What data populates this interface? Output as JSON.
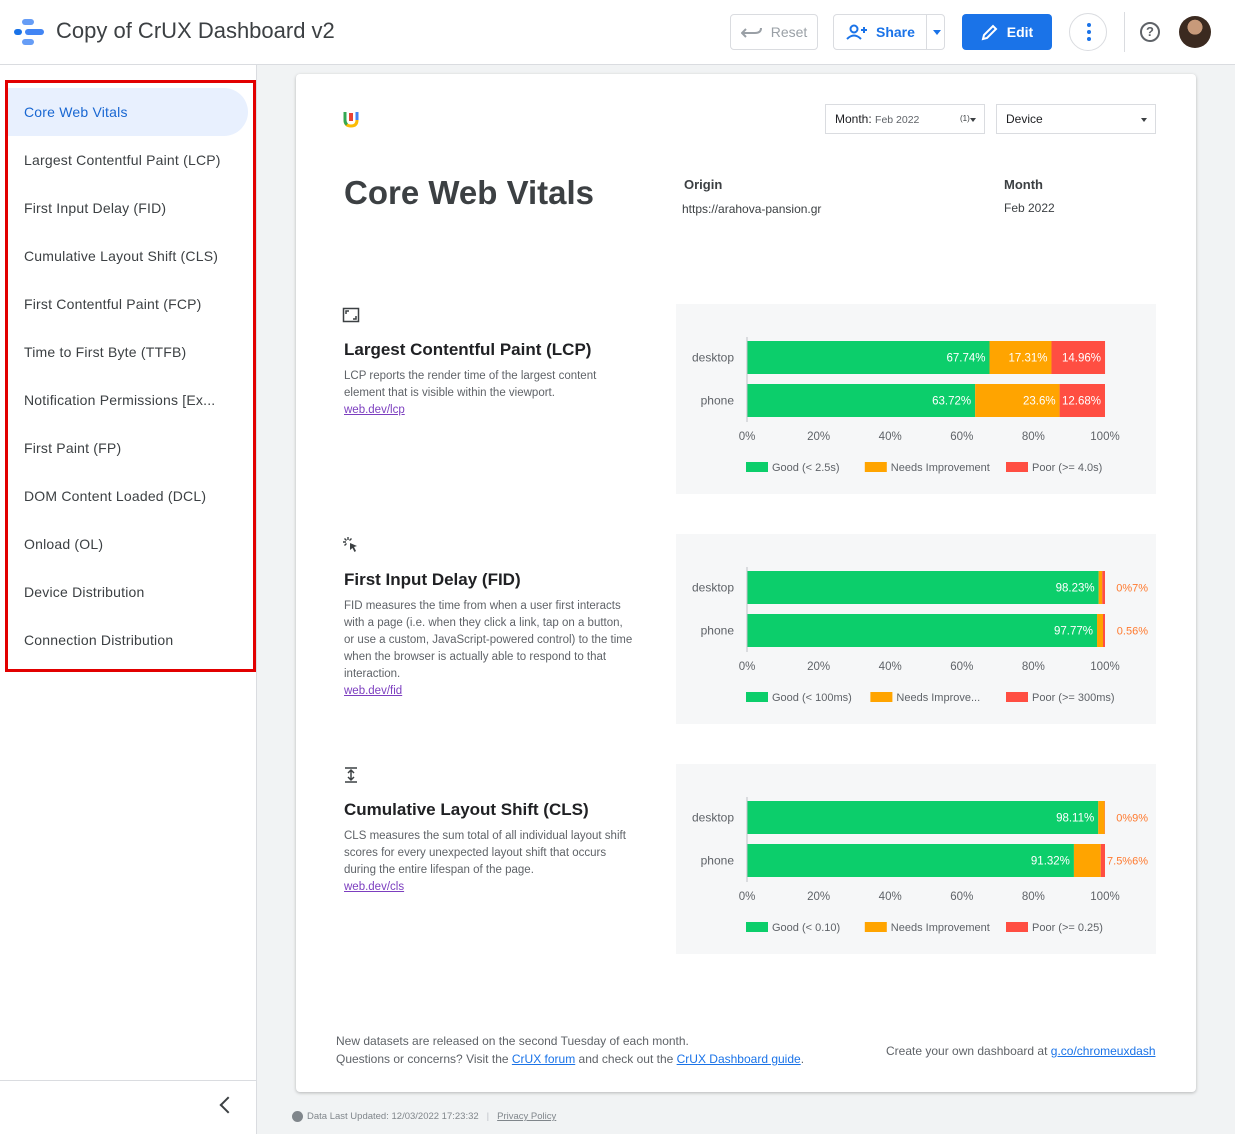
{
  "header": {
    "title": "Copy of CrUX Dashboard v2",
    "reset_label": "Reset",
    "share_label": "Share",
    "edit_label": "Edit",
    "help_glyph": "?"
  },
  "sidebar": {
    "items": [
      {
        "label": "Core Web Vitals"
      },
      {
        "label": "Largest Contentful Paint (LCP)"
      },
      {
        "label": "First Input Delay (FID)"
      },
      {
        "label": "Cumulative Layout Shift (CLS)"
      },
      {
        "label": "First Contentful Paint (FCP)"
      },
      {
        "label": "Time to First Byte (TTFB)"
      },
      {
        "label": "Notification Permissions [Ex..."
      },
      {
        "label": "First Paint (FP)"
      },
      {
        "label": "DOM Content Loaded (DCL)"
      },
      {
        "label": "Onload (OL)"
      },
      {
        "label": "Device Distribution"
      },
      {
        "label": "Connection Distribution"
      }
    ],
    "active_index": 0
  },
  "filters": {
    "month_label": "Month:",
    "month_value": "Feb 2022",
    "month_count": "(1)",
    "device_label": "Device"
  },
  "report": {
    "title": "Core Web Vitals",
    "origin_label": "Origin",
    "origin_value": "https://arahova-pansion.gr",
    "month_label": "Month",
    "month_value": "Feb 2022"
  },
  "metrics": [
    {
      "title": "Largest Contentful Paint (LCP)",
      "icon": "lcp-frame-icon",
      "description": "LCP reports the render time of the largest content element that is visible within the viewport.",
      "link": "web.dev/lcp"
    },
    {
      "title": "First Input Delay (FID)",
      "icon": "fid-click-icon",
      "description": "FID measures the time from when a user first interacts with a page (i.e. when they click a link, tap on a button, or use a custom, JavaScript-powered control) to the time when the browser is actually able to respond to that interaction.",
      "link": "web.dev/fid"
    },
    {
      "title": "Cumulative Layout Shift (CLS)",
      "icon": "cls-shift-icon",
      "description": "CLS measures the sum total of all individual layout shift scores for every unexpected layout shift that occurs during the entire lifespan of the page.",
      "link": "web.dev/cls"
    }
  ],
  "chart_data": [
    {
      "type": "bar",
      "orientation": "horizontal-stacked-percent",
      "categories": [
        "desktop",
        "phone"
      ],
      "series": [
        {
          "name": "Good (< 2.5s)",
          "values": [
            67.74,
            63.72
          ],
          "labels": [
            "67.74%",
            "63.72%"
          ]
        },
        {
          "name": "Needs Improvement",
          "values": [
            17.31,
            23.6
          ],
          "labels": [
            "17.31%",
            "23.6%"
          ]
        },
        {
          "name": "Poor (>= 4.0s)",
          "values": [
            14.96,
            12.68
          ],
          "labels": [
            "14.96%",
            "12.68%"
          ]
        }
      ],
      "xticks": [
        "0%",
        "20%",
        "40%",
        "60%",
        "80%",
        "100%"
      ],
      "xlim": [
        0,
        100
      ],
      "legend": "bottom",
      "colors": [
        "#0cce6b",
        "#ffa400",
        "#ff4e42"
      ]
    },
    {
      "type": "bar",
      "orientation": "horizontal-stacked-percent",
      "categories": [
        "desktop",
        "phone"
      ],
      "series": [
        {
          "name": "Good (< 100ms)",
          "values": [
            98.23,
            97.77
          ],
          "labels": [
            "98.23%",
            "97.77%"
          ]
        },
        {
          "name": "Needs Improve...",
          "values": [
            1.0,
            1.67
          ],
          "labels": [
            "",
            ""
          ]
        },
        {
          "name": "Poor (>= 300ms)",
          "values": [
            0.77,
            0.56
          ],
          "labels": [
            "",
            ""
          ]
        }
      ],
      "overlap_labels": [
        "0%7%",
        "0.56%"
      ],
      "xticks": [
        "0%",
        "20%",
        "40%",
        "60%",
        "80%",
        "100%"
      ],
      "xlim": [
        0,
        100
      ],
      "legend": "bottom",
      "colors": [
        "#0cce6b",
        "#ffa400",
        "#ff4e42"
      ]
    },
    {
      "type": "bar",
      "orientation": "horizontal-stacked-percent",
      "categories": [
        "desktop",
        "phone"
      ],
      "series": [
        {
          "name": "Good (< 0.10)",
          "values": [
            98.11,
            91.32
          ],
          "labels": [
            "98.11%",
            "91.32%"
          ]
        },
        {
          "name": "Needs Improvement",
          "values": [
            1.8,
            7.5
          ],
          "labels": [
            "",
            ""
          ]
        },
        {
          "name": "Poor (>= 0.25)",
          "values": [
            0.09,
            1.18
          ],
          "labels": [
            "",
            ""
          ]
        }
      ],
      "overlap_labels": [
        "0%9%",
        "7.5%6%"
      ],
      "xticks": [
        "0%",
        "20%",
        "40%",
        "60%",
        "80%",
        "100%"
      ],
      "xlim": [
        0,
        100
      ],
      "legend": "bottom",
      "colors": [
        "#0cce6b",
        "#ffa400",
        "#ff4e42"
      ]
    }
  ],
  "footer": {
    "line1": "New datasets are released on the second Tuesday of each month.",
    "line2_prefix": "Questions or concerns? Visit the ",
    "forum_link": "CrUX forum",
    "line2_middle": " and check out the ",
    "guide_link": "CrUX Dashboard guide",
    "line2_suffix": ".",
    "right_prefix": "Create your own dashboard at ",
    "right_link": "g.co/chromeuxdash"
  },
  "status": {
    "last_updated": "Data Last Updated: 12/03/2022 17:23:32",
    "privacy": "Privacy Policy"
  }
}
